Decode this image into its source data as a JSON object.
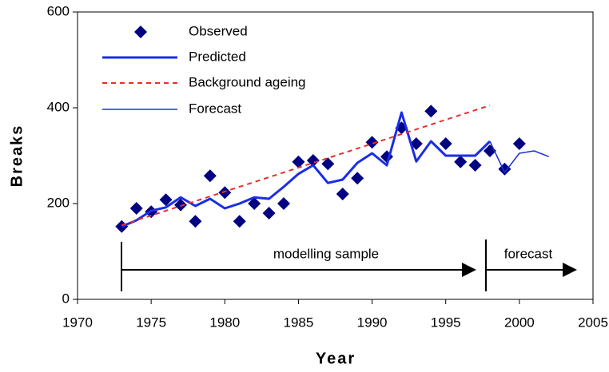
{
  "chart_data": {
    "type": "line",
    "x_label": "Year",
    "y_label": "Breaks",
    "xlim": [
      1970,
      2005
    ],
    "xticks": [
      1970,
      1975,
      1980,
      1985,
      1990,
      1995,
      2000,
      2005
    ],
    "ylim": [
      0,
      600
    ],
    "yticks": [
      0,
      200,
      400,
      600
    ],
    "series": [
      {
        "name": "Observed",
        "color": "#000080",
        "marker": "diamond",
        "x": [
          1973,
          1974,
          1975,
          1976,
          1977,
          1978,
          1979,
          1980,
          1981,
          1982,
          1983,
          1984,
          1985,
          1986,
          1987,
          1988,
          1989,
          1990,
          1991,
          1992,
          1993,
          1994,
          1995,
          1996,
          1997,
          1998,
          1999,
          2000
        ],
        "values": [
          152,
          190,
          183,
          208,
          197,
          163,
          258,
          223,
          163,
          200,
          180,
          200,
          287,
          290,
          283,
          220,
          253,
          328,
          298,
          358,
          325,
          393,
          325,
          287,
          280,
          310,
          272,
          325
        ]
      },
      {
        "name": "Predicted",
        "color": "#1a2ee6",
        "width": 3,
        "x": [
          1973,
          1974,
          1975,
          1976,
          1977,
          1978,
          1979,
          1980,
          1981,
          1982,
          1983,
          1984,
          1985,
          1986,
          1987,
          1988,
          1989,
          1990,
          1991,
          1992,
          1993,
          1994,
          1995,
          1996,
          1997,
          1998
        ],
        "values": [
          152,
          165,
          185,
          192,
          213,
          195,
          210,
          190,
          200,
          213,
          210,
          235,
          262,
          280,
          243,
          250,
          285,
          305,
          280,
          390,
          288,
          330,
          300,
          300,
          300,
          330
        ]
      },
      {
        "name": "Background ageing",
        "color": "#e8302a",
        "width": 2,
        "dashed": true,
        "x": [
          1973,
          1998
        ],
        "values": [
          155,
          405
        ]
      },
      {
        "name": "Forecast",
        "color": "#1a2ee6",
        "width": 1.5,
        "x": [
          1998,
          1999,
          2000,
          2001,
          2002
        ],
        "values": [
          330,
          265,
          305,
          310,
          298
        ]
      }
    ],
    "annotations": [
      "modelling sample",
      "forecast"
    ]
  }
}
